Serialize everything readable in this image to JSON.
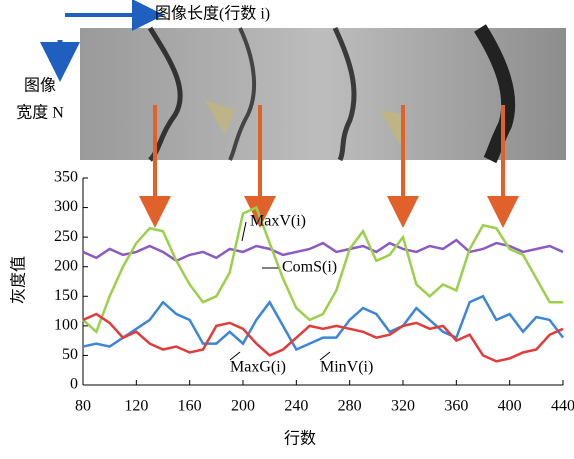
{
  "chart_data": {
    "type": "line",
    "image_length_label": "图像长度(行数 i)",
    "image_width_label": [
      "图像",
      "宽度 N"
    ],
    "xlabel": "行数",
    "ylabel": "灰度值",
    "x": [
      80,
      90,
      100,
      110,
      120,
      130,
      140,
      150,
      160,
      170,
      180,
      190,
      200,
      210,
      220,
      230,
      240,
      250,
      260,
      270,
      280,
      290,
      300,
      310,
      320,
      330,
      340,
      350,
      360,
      370,
      380,
      390,
      400,
      410,
      420,
      430,
      440
    ],
    "series": [
      {
        "name": "MaxV(i)",
        "color": "#8a5cc0",
        "values": [
          225,
          215,
          230,
          220,
          225,
          235,
          225,
          210,
          220,
          225,
          215,
          230,
          225,
          235,
          230,
          220,
          225,
          230,
          240,
          225,
          230,
          235,
          225,
          240,
          230,
          225,
          235,
          230,
          245,
          225,
          230,
          240,
          235,
          225,
          230,
          235,
          225
        ]
      },
      {
        "name": "ComS(i)",
        "color": "#9bd04a",
        "values": [
          110,
          90,
          150,
          200,
          240,
          265,
          260,
          210,
          170,
          140,
          150,
          190,
          290,
          300,
          240,
          180,
          130,
          110,
          120,
          160,
          230,
          260,
          210,
          220,
          250,
          170,
          150,
          170,
          160,
          230,
          270,
          265,
          230,
          220,
          180,
          140,
          140
        ]
      },
      {
        "name": "MaxG(i)",
        "color": "#3d86d6",
        "values": [
          65,
          70,
          65,
          80,
          95,
          110,
          140,
          120,
          110,
          70,
          70,
          90,
          70,
          110,
          140,
          100,
          60,
          70,
          80,
          80,
          110,
          130,
          120,
          90,
          100,
          130,
          110,
          90,
          80,
          140,
          150,
          110,
          120,
          90,
          115,
          110,
          80
        ]
      },
      {
        "name": "MinV(i)",
        "color": "#e03c3c",
        "values": [
          110,
          120,
          105,
          80,
          90,
          70,
          60,
          65,
          55,
          60,
          100,
          105,
          95,
          70,
          50,
          60,
          80,
          100,
          95,
          100,
          95,
          90,
          80,
          85,
          100,
          105,
          95,
          100,
          75,
          85,
          50,
          40,
          45,
          55,
          60,
          85,
          95
        ]
      }
    ],
    "xlim": [
      80,
      440
    ],
    "xticks": [
      80,
      120,
      160,
      200,
      240,
      280,
      320,
      360,
      400,
      440
    ],
    "ylim": [
      0,
      350
    ],
    "yticks": [
      0,
      50,
      100,
      150,
      200,
      250,
      300,
      350
    ]
  }
}
